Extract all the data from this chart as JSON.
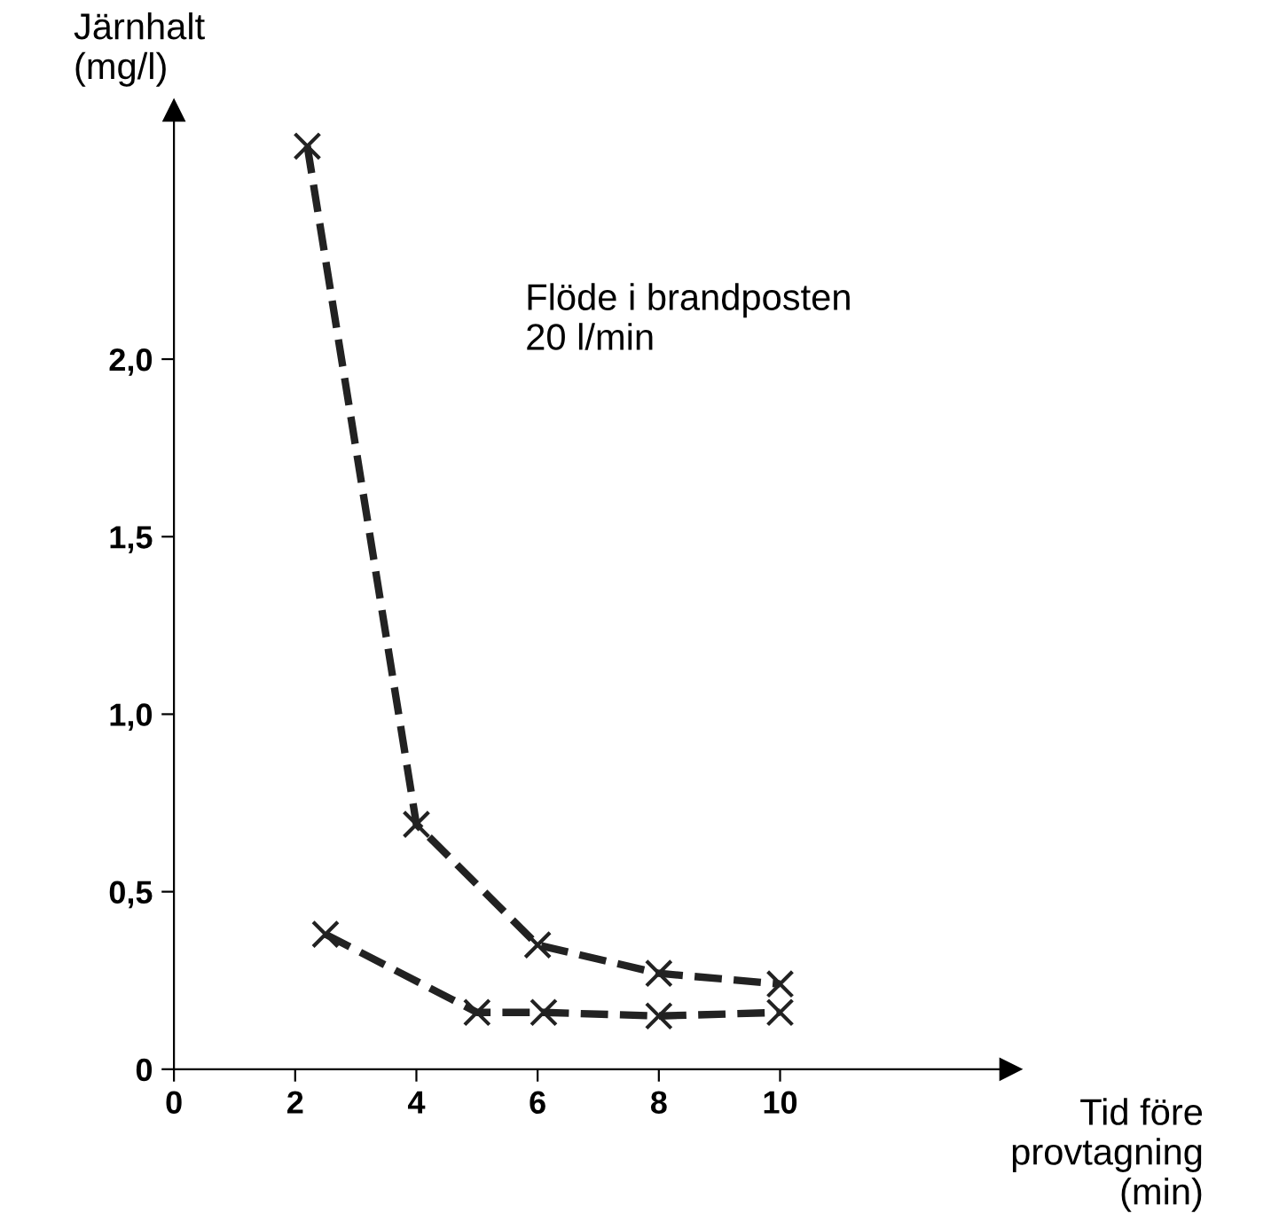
{
  "chart_data": {
    "type": "line",
    "xlabel": "Tid före\nprovtagning\n(min)",
    "ylabel": "Järnhalt\n(mg/l)",
    "annotations": [
      "Flöde i brandposten\n20 l/min"
    ],
    "series": [
      {
        "color": "#222222",
        "x": [
          2.2,
          4.0,
          6.0,
          8.0,
          10.0
        ],
        "values": [
          2.6,
          0.69,
          0.35,
          0.27,
          0.24
        ]
      },
      {
        "color": "#222222",
        "x": [
          2.5,
          5.0,
          6.1,
          8.0,
          10.0
        ],
        "values": [
          0.38,
          0.16,
          0.16,
          0.15,
          0.16
        ]
      }
    ],
    "xlim": [
      0,
      13.8
    ],
    "ylim": [
      0,
      2.7
    ],
    "xticks": [
      0,
      2,
      4,
      6,
      8,
      10
    ],
    "yticks": [
      0,
      {
        "value": 0.5,
        "label": "0,5"
      },
      {
        "value": 1.0,
        "label": "1,0"
      },
      {
        "value": 1.5,
        "label": "1,5"
      },
      {
        "value": 2.0,
        "label": "2,0"
      }
    ],
    "grid": false,
    "marker": "cross",
    "line_style": "dashed"
  }
}
